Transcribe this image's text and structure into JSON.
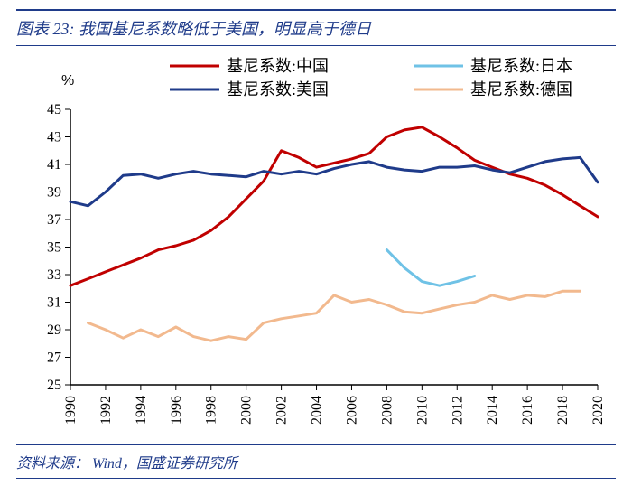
{
  "title": {
    "prefix": "图表 23:",
    "text": "我国基尼系数略低于美国，明显高于德日"
  },
  "source": {
    "label": "资料来源：",
    "text": "Wind，国盛证券研究所"
  },
  "chart": {
    "type": "line",
    "y_unit_label": "%",
    "ylim": [
      25,
      45
    ],
    "ytick_step": 2,
    "xlim": [
      1990,
      2020
    ],
    "xtick_step": 2,
    "label_fontsize": 16,
    "legend_fontsize": 18,
    "line_width": 3,
    "axis_color": "#000000",
    "tick_color": "#000000",
    "background_color": "#ffffff",
    "legend_position": "top",
    "series": [
      {
        "name": "基尼系数:中国",
        "color": "#c00000",
        "x": [
          1990,
          1991,
          1992,
          1993,
          1994,
          1995,
          1996,
          1997,
          1998,
          1999,
          2000,
          2001,
          2002,
          2003,
          2004,
          2005,
          2006,
          2007,
          2008,
          2009,
          2010,
          2011,
          2012,
          2013,
          2014,
          2015,
          2016,
          2017,
          2018,
          2019,
          2020
        ],
        "y": [
          32.2,
          32.7,
          33.2,
          33.7,
          34.2,
          34.8,
          35.1,
          35.5,
          36.2,
          37.2,
          38.5,
          39.8,
          42.0,
          41.5,
          40.8,
          41.1,
          41.4,
          41.8,
          43.0,
          43.5,
          43.7,
          43.0,
          42.2,
          41.3,
          40.8,
          40.3,
          40.0,
          39.5,
          38.8,
          38.0,
          37.2
        ]
      },
      {
        "name": "基尼系数:日本",
        "color": "#6fc2e6",
        "x": [
          2008,
          2009,
          2010,
          2011,
          2012,
          2013
        ],
        "y": [
          34.8,
          33.5,
          32.5,
          32.2,
          32.5,
          32.9
        ]
      },
      {
        "name": "基尼系数:美国",
        "color": "#1f3b8a",
        "x": [
          1990,
          1991,
          1992,
          1993,
          1994,
          1995,
          1996,
          1997,
          1998,
          1999,
          2000,
          2001,
          2002,
          2003,
          2004,
          2005,
          2006,
          2007,
          2008,
          2009,
          2010,
          2011,
          2012,
          2013,
          2014,
          2015,
          2016,
          2017,
          2018,
          2019,
          2020
        ],
        "y": [
          38.3,
          38.0,
          39.0,
          40.2,
          40.3,
          40.0,
          40.3,
          40.5,
          40.3,
          40.2,
          40.1,
          40.5,
          40.3,
          40.5,
          40.3,
          40.7,
          41.0,
          41.2,
          40.8,
          40.6,
          40.5,
          40.8,
          40.8,
          40.9,
          40.6,
          40.4,
          40.8,
          41.2,
          41.4,
          41.5,
          39.7
        ]
      },
      {
        "name": "基尼系数:德国",
        "color": "#f2b98e",
        "x": [
          1991,
          1992,
          1993,
          1994,
          1995,
          1996,
          1997,
          1998,
          1999,
          2000,
          2001,
          2002,
          2003,
          2004,
          2005,
          2006,
          2007,
          2008,
          2009,
          2010,
          2011,
          2012,
          2013,
          2014,
          2015,
          2016,
          2017,
          2018,
          2019
        ],
        "y": [
          29.5,
          29.0,
          28.4,
          29.0,
          28.5,
          29.2,
          28.5,
          28.2,
          28.5,
          28.3,
          29.5,
          29.8,
          30.0,
          30.2,
          31.5,
          31.0,
          31.2,
          30.8,
          30.3,
          30.2,
          30.5,
          30.8,
          31.0,
          31.5,
          31.2,
          31.5,
          31.4,
          31.8,
          31.8
        ]
      }
    ]
  }
}
